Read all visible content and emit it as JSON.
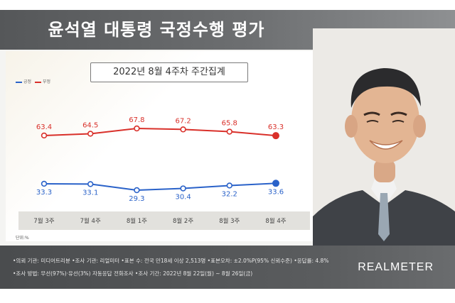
{
  "title": "윤석열 대통령 국정수행 평가",
  "subtitle": "2022년 8월 4주차 주간집계",
  "legend": [
    {
      "label": "긍정",
      "color": "#2a62c9"
    },
    {
      "label": "부정",
      "color": "#d9302a"
    }
  ],
  "unit_label": "단위:%",
  "chart_data": {
    "type": "line",
    "categories": [
      "7월 3주",
      "7월 4주",
      "8월 1주",
      "8월 2주",
      "8월 3주",
      "8월 4주"
    ],
    "series": [
      {
        "name": "부정",
        "color": "#d9302a",
        "values": [
          63.4,
          64.5,
          67.8,
          67.2,
          65.8,
          63.3
        ]
      },
      {
        "name": "긍정",
        "color": "#2a62c9",
        "values": [
          33.3,
          33.1,
          29.3,
          30.4,
          32.2,
          33.6
        ]
      }
    ],
    "legend_position": "top-left"
  },
  "footer": {
    "line1": "•의뢰 기관: 미디어트리뷴 •조사 기관: 리얼미터 •표본 수: 전국 만18세 이상 2,513명 •표본오차: ±2.0%P(95% 신뢰수준) •응답률: 4.8%",
    "line2": "•조사 방법: 무선(97%)·유선(3%) 자동응답 전화조사 •조사 기간: 2022년 8월 22일(월) ~ 8월 26일(금)",
    "brand": "REALMETER"
  }
}
